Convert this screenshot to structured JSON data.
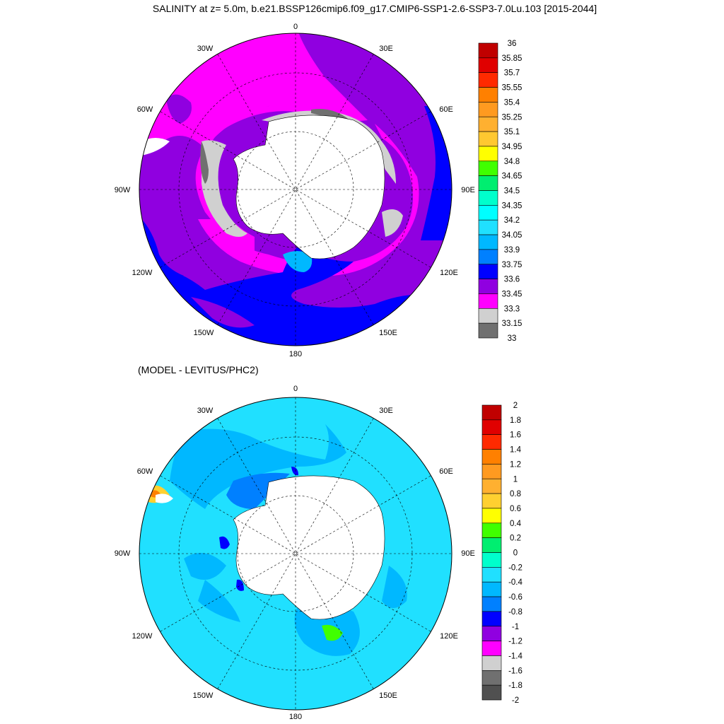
{
  "top_panel": {
    "title": "SALINITY at z=   5.0m, b.e21.BSSP126cmip6.f09_g17.CMIP6-SSP1-2.6-SSP3-7.0Lu.103 [2015-2044]",
    "lon_labels": [
      "0",
      "30E",
      "60E",
      "90E",
      "120E",
      "150E",
      "180",
      "150W",
      "120W",
      "90W",
      "60W",
      "30W"
    ],
    "colorbar": {
      "labels": [
        "36",
        "35.85",
        "35.7",
        "35.55",
        "35.4",
        "35.25",
        "35.1",
        "34.95",
        "34.8",
        "34.65",
        "34.5",
        "34.35",
        "34.2",
        "34.05",
        "33.9",
        "33.75",
        "33.6",
        "33.45",
        "33.3",
        "33.15",
        "33"
      ],
      "colors": [
        "#c00000",
        "#e00000",
        "#ff2a00",
        "#ff8000",
        "#ff9a20",
        "#ffb030",
        "#ffc830",
        "#ffff00",
        "#40ff00",
        "#00ee70",
        "#00ffcc",
        "#00ffff",
        "#20e0ff",
        "#00b8ff",
        "#0080ff",
        "#0000ff",
        "#9000e0",
        "#ff00ff",
        "#d0d0d0",
        "#707070"
      ]
    }
  },
  "bottom_panel": {
    "title": "(MODEL - LEVITUS/PHC2)",
    "lon_labels": [
      "0",
      "30E",
      "60E",
      "90E",
      "120E",
      "150E",
      "180",
      "150W",
      "120W",
      "90W",
      "60W",
      "30W"
    ],
    "colorbar": {
      "labels": [
        "2",
        "1.8",
        "1.6",
        "1.4",
        "1.2",
        "1",
        "0.8",
        "0.6",
        "0.4",
        "0.2",
        "0",
        "-0.2",
        "-0.4",
        "-0.6",
        "-0.8",
        "-1",
        "-1.2",
        "-1.4",
        "-1.6",
        "-1.8",
        "-2"
      ],
      "colors": [
        "#c00000",
        "#e00000",
        "#ff2a00",
        "#ff8000",
        "#ff9a20",
        "#ffb030",
        "#ffd030",
        "#ffff00",
        "#40ff00",
        "#00ee70",
        "#00ffcc",
        "#20e0ff",
        "#00b8ff",
        "#0080ff",
        "#0000ff",
        "#9000e0",
        "#ff00ff",
        "#d0d0d0",
        "#707070",
        "#505050"
      ]
    }
  }
}
